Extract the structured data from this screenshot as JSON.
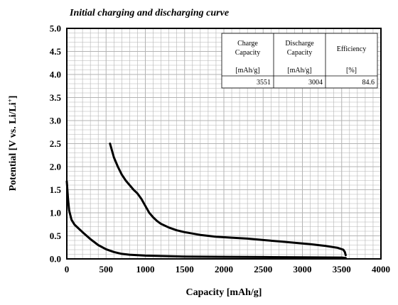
{
  "chart_data": {
    "type": "line",
    "title": "Initial charging and discharging curve",
    "xlabel": "Capacity [mAh/g]",
    "ylabel_main": "Potential [V vs. Li/Li",
    "ylabel_sup": "+",
    "ylabel_end": "]",
    "xlim": [
      0,
      4000
    ],
    "ylim": [
      0.0,
      5.0
    ],
    "x_ticks": [
      "0",
      "500",
      "1000",
      "1500",
      "2000",
      "2500",
      "3000",
      "3500",
      "4000"
    ],
    "y_ticks": [
      "0.0",
      "0.5",
      "1.0",
      "1.5",
      "2.0",
      "2.5",
      "3.0",
      "3.5",
      "4.0",
      "4.5",
      "5.0"
    ],
    "grid": true,
    "series": [
      {
        "points": [
          [
            0,
            1.68
          ],
          [
            15,
            1.3
          ],
          [
            30,
            1.05
          ],
          [
            60,
            0.85
          ],
          [
            100,
            0.74
          ],
          [
            150,
            0.66
          ],
          [
            220,
            0.55
          ],
          [
            300,
            0.43
          ],
          [
            400,
            0.3
          ],
          [
            500,
            0.21
          ],
          [
            600,
            0.15
          ],
          [
            700,
            0.11
          ],
          [
            800,
            0.09
          ],
          [
            1000,
            0.07
          ],
          [
            1500,
            0.05
          ],
          [
            2000,
            0.045
          ],
          [
            2500,
            0.04
          ],
          [
            3000,
            0.035
          ],
          [
            3500,
            0.03
          ],
          [
            3551,
            0.02
          ]
        ]
      },
      {
        "points": [
          [
            550,
            2.5
          ],
          [
            600,
            2.2
          ],
          [
            650,
            2.0
          ],
          [
            700,
            1.83
          ],
          [
            750,
            1.7
          ],
          [
            800,
            1.6
          ],
          [
            850,
            1.5
          ],
          [
            900,
            1.42
          ],
          [
            950,
            1.3
          ],
          [
            1000,
            1.15
          ],
          [
            1050,
            1.0
          ],
          [
            1100,
            0.9
          ],
          [
            1150,
            0.82
          ],
          [
            1200,
            0.76
          ],
          [
            1300,
            0.68
          ],
          [
            1400,
            0.62
          ],
          [
            1500,
            0.58
          ],
          [
            1700,
            0.52
          ],
          [
            1900,
            0.48
          ],
          [
            2100,
            0.46
          ],
          [
            2300,
            0.44
          ],
          [
            2500,
            0.41
          ],
          [
            2700,
            0.38
          ],
          [
            2900,
            0.35
          ],
          [
            3100,
            0.32
          ],
          [
            3300,
            0.28
          ],
          [
            3450,
            0.24
          ],
          [
            3520,
            0.2
          ],
          [
            3540,
            0.15
          ],
          [
            3551,
            0.08
          ]
        ]
      }
    ],
    "table": {
      "headers": [
        [
          "Charge",
          "Capacity"
        ],
        [
          "Discharge",
          "Capacity"
        ],
        [
          "Efficiency"
        ]
      ],
      "units": [
        "[mAh/g]",
        "[mAh/g]",
        "[%]"
      ],
      "values": [
        "3551",
        "3004",
        "84.6"
      ]
    }
  }
}
